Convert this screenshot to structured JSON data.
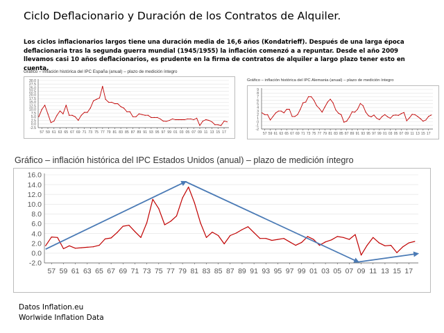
{
  "slide": {
    "title": "Ciclo Deflacionario y Duración de los Contratos de Alquiler.",
    "intro": "Los ciclos inflacionarios largos tiene una duración media de 16,6 años (Kondatrieff). Después de una larga época deflacionaria tras la segunda  guerra mundial (1945/1955) la inflación comenzó a a repuntar. Desde el año 2009 llevamos casi 10 años deflacionarios, es prudente en la firma de contratos de alquiler a largo plazo tener esto en cuenta.",
    "footer_line1": "Datos Inflation.eu",
    "footer_line2": "Worlwide Inflation Data"
  },
  "colors": {
    "line": "#c00000",
    "arrow": "#4a7ab5",
    "grid": "#e0e0e0",
    "axis": "#555555"
  },
  "chart_data": [
    {
      "id": "spain",
      "type": "line",
      "title": "Gráfico – inflación histórica del IPC España (anual) – plazo de medición íntegro",
      "ylim": [
        -2.5,
        30
      ],
      "yticks": [
        "30.0",
        "27.5",
        "25.0",
        "22.5",
        "20.0",
        "17.5",
        "15.0",
        "12.5",
        "10.0",
        "7.5",
        "5.0",
        "2.5",
        "0.0",
        "-2.5"
      ],
      "xticks": [
        "57",
        "59",
        "61",
        "63",
        "65",
        "67",
        "69",
        "71",
        "73",
        "75",
        "77",
        "79",
        "81",
        "83",
        "85",
        "87",
        "89",
        "91",
        "93",
        "95",
        "97",
        "99",
        "01",
        "03",
        "05",
        "07",
        "09",
        "11",
        "13",
        "15",
        "17"
      ],
      "x": [
        1956,
        1957,
        1958,
        1959,
        1960,
        1961,
        1962,
        1963,
        1964,
        1965,
        1966,
        1967,
        1968,
        1969,
        1970,
        1971,
        1972,
        1973,
        1974,
        1975,
        1976,
        1977,
        1978,
        1979,
        1980,
        1981,
        1982,
        1983,
        1984,
        1985,
        1986,
        1987,
        1988,
        1989,
        1990,
        1991,
        1992,
        1993,
        1994,
        1995,
        1996,
        1997,
        1998,
        1999,
        2000,
        2001,
        2002,
        2003,
        2004,
        2005,
        2006,
        2007,
        2008,
        2009,
        2010,
        2011,
        2012,
        2013,
        2014,
        2015,
        2016,
        2017,
        2018
      ],
      "values": [
        5,
        10,
        13,
        7,
        1,
        2,
        6,
        9,
        7,
        13,
        6,
        6,
        5,
        2.5,
        6,
        8,
        8,
        11,
        16,
        17,
        18,
        26,
        17,
        15,
        15,
        14,
        14,
        12,
        11,
        8.5,
        8.5,
        5,
        5,
        7,
        6.5,
        6,
        6,
        4.5,
        4.5,
        4.5,
        3.5,
        2,
        1.8,
        2.5,
        3.5,
        3,
        3,
        3,
        3,
        3.5,
        3.5,
        3,
        4,
        -1,
        2,
        3,
        2.5,
        1.5,
        -0.5,
        -0.5,
        -1,
        2,
        1.5
      ]
    },
    {
      "id": "germany",
      "type": "line",
      "title": "Gráfico – inflación histórica del IPC Alemania (anual) – plazo de medición íntegro",
      "ylim": [
        -2,
        9
      ],
      "yticks": [
        "9",
        "8",
        "7",
        "6",
        "5",
        "4",
        "3",
        "2",
        "1",
        "0",
        "-1",
        "-2"
      ],
      "xticks": [
        "57",
        "59",
        "61",
        "63",
        "65",
        "67",
        "69",
        "71",
        "73",
        "75",
        "77",
        "79",
        "81",
        "83",
        "85",
        "87",
        "89",
        "91",
        "93",
        "95",
        "97",
        "99",
        "01",
        "03",
        "05",
        "07",
        "09",
        "11",
        "13",
        "15",
        "17"
      ],
      "x": [
        1956,
        1957,
        1958,
        1959,
        1960,
        1961,
        1962,
        1963,
        1964,
        1965,
        1966,
        1967,
        1968,
        1969,
        1970,
        1971,
        1972,
        1973,
        1974,
        1975,
        1976,
        1977,
        1978,
        1979,
        1980,
        1981,
        1982,
        1983,
        1984,
        1985,
        1986,
        1987,
        1988,
        1989,
        1990,
        1991,
        1992,
        1993,
        1994,
        1995,
        1996,
        1997,
        1998,
        1999,
        2000,
        2001,
        2002,
        2003,
        2004,
        2005,
        2006,
        2007,
        2008,
        2009,
        2010,
        2011,
        2012,
        2013,
        2014,
        2015,
        2016,
        2017,
        2018
      ],
      "values": [
        2.5,
        2,
        2,
        0.5,
        1.5,
        2.5,
        3,
        3,
        2.5,
        3.5,
        3.5,
        1.5,
        1.5,
        2,
        3.5,
        5.3,
        5.5,
        7,
        7,
        6,
        4.5,
        3.7,
        2.7,
        4.1,
        5.5,
        6.3,
        5.3,
        3.3,
        2.4,
        2,
        -0.1,
        0.2,
        1.3,
        2.8,
        2.7,
        3.5,
        5.1,
        4.5,
        2.7,
        1.7,
        1.4,
        1.9,
        1,
        0.6,
        1.5,
        2,
        1.4,
        1,
        1.8,
        1.9,
        1.8,
        2.3,
        2.6,
        0.3,
        1.1,
        2.1,
        2,
        1.5,
        0.9,
        0.2,
        0.5,
        1.5,
        1.9
      ]
    },
    {
      "id": "usa",
      "type": "line",
      "title": "Gráfico – inflación histórica del IPC Estados Unidos (anual) – plazo de medición íntegro",
      "ylim": [
        -2,
        16
      ],
      "yticks": [
        "16.0",
        "14.0",
        "12.0",
        "10.0",
        "8.0",
        "6.0",
        "4.0",
        "2.0",
        "0.0",
        "-2.0"
      ],
      "xticks": [
        "57",
        "59",
        "61",
        "63",
        "65",
        "67",
        "69",
        "71",
        "73",
        "75",
        "77",
        "79",
        "81",
        "83",
        "85",
        "87",
        "89",
        "91",
        "93",
        "95",
        "97",
        "99",
        "01",
        "03",
        "05",
        "07",
        "09",
        "11",
        "13",
        "15",
        "17"
      ],
      "x": [
        1956,
        1957,
        1958,
        1959,
        1960,
        1961,
        1962,
        1963,
        1964,
        1965,
        1966,
        1967,
        1968,
        1969,
        1970,
        1971,
        1972,
        1973,
        1974,
        1975,
        1976,
        1977,
        1978,
        1979,
        1980,
        1981,
        1982,
        1983,
        1984,
        1985,
        1986,
        1987,
        1988,
        1989,
        1990,
        1991,
        1992,
        1993,
        1994,
        1995,
        1996,
        1997,
        1998,
        1999,
        2000,
        2001,
        2002,
        2003,
        2004,
        2005,
        2006,
        2007,
        2008,
        2009,
        2010,
        2011,
        2012,
        2013,
        2014,
        2015,
        2016,
        2017,
        2018
      ],
      "values": [
        1.5,
        3.3,
        3.2,
        0.9,
        1.5,
        1,
        1.1,
        1.2,
        1.3,
        1.6,
        2.9,
        3.1,
        4.2,
        5.5,
        5.7,
        4.4,
        3.2,
        6.2,
        11,
        9.1,
        5.8,
        6.5,
        7.6,
        11.3,
        13.5,
        10.3,
        6.2,
        3.2,
        4.3,
        3.6,
        1.9,
        3.6,
        4.1,
        4.8,
        5.4,
        4.2,
        3,
        3,
        2.6,
        2.8,
        3,
        2.3,
        1.6,
        2.2,
        3.4,
        2.8,
        1.6,
        2.3,
        2.7,
        3.4,
        3.2,
        2.8,
        3.8,
        -0.4,
        1.6,
        3.2,
        2.1,
        1.5,
        1.6,
        0.1,
        1.3,
        2.1,
        2.4
      ],
      "arrows": [
        {
          "from": [
            1956,
            0.8
          ],
          "to": [
            1979.5,
            14.6
          ]
        },
        {
          "from": [
            1979.5,
            14.6
          ],
          "to": [
            2008.5,
            -1.8
          ]
        },
        {
          "from": [
            2008.5,
            -1.8
          ],
          "to": [
            2018.5,
            -0.1
          ]
        }
      ]
    }
  ]
}
